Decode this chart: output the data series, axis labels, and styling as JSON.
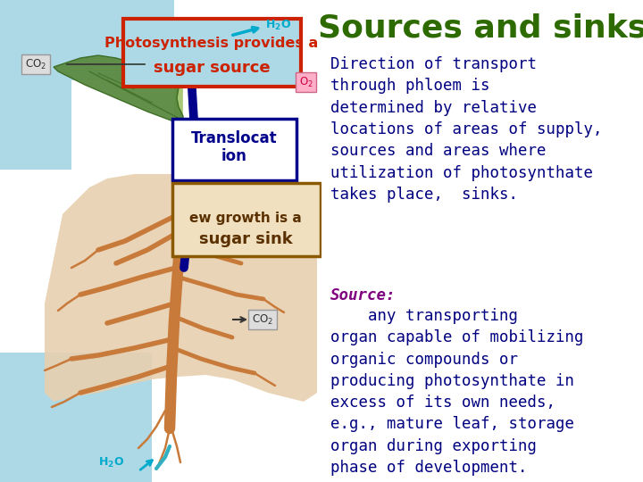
{
  "bg_color_left": "#ffffff",
  "bg_color_right": "#add8e6",
  "title": "Sources and sinks",
  "title_color": "#2d6a00",
  "title_fontsize": 26,
  "para1": "Direction of transport\nthrough phloem is\ndetermined by relative\nlocations of areas of supply,\nsources and areas where\nutilization of photosynthate\ntakes place,  sinks.",
  "para1_color": "#000080",
  "para1_fontsize": 12.5,
  "source_label": "Source:",
  "source_label_color": "#800080",
  "source_rest": "    any transporting\norgan capable of mobilizing\norganic compounds or\nproducing photosynthate in\nexcess of its own needs,\ne.g., mature leaf, storage\norgan during exporting\nphase of development.",
  "source_rest_color": "#000080",
  "source_fontsize": 12.5,
  "photo_box_text_line1": "Photosynthesis provides a",
  "photo_box_text_line2": "sugar source",
  "photo_box_border": "#cc2200",
  "photo_box_fill": "#add8e6",
  "photo_text_color": "#cc2200",
  "translocat_text": "Translocat\nion",
  "translocat_box_color": "#00008b",
  "sink_text_line1": "ew growth is a",
  "sink_text_line2": "sugar sink",
  "sink_box_color": "#8b5a00",
  "sink_text_color": "#5a3000",
  "co2_color": "#333333",
  "h2o_color": "#00aacc",
  "blue_rect_color": "#add8e6",
  "soil_color": "#e8d0b0",
  "root_color": "#c87a3a",
  "stem_green": "#90b870",
  "stem_dark_blue": "#00008b",
  "leaf_color": "#5a8a40",
  "leaf_dark": "#3a6a20"
}
